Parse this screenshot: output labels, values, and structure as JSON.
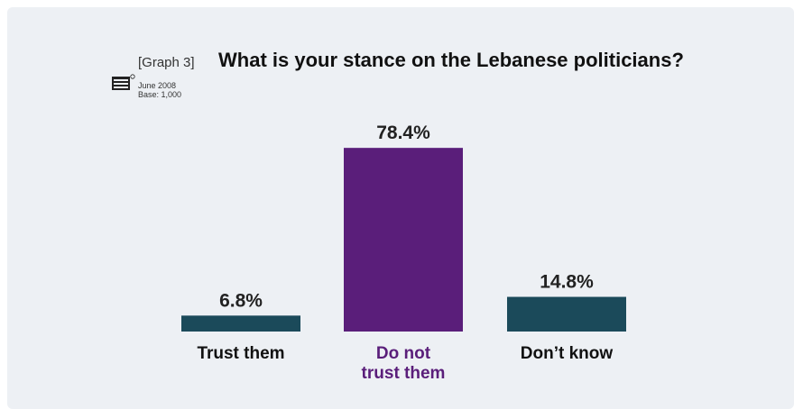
{
  "header": {
    "graph_tag": "[Graph 3]",
    "title": "What is your stance on the Lebanese politicians?",
    "date": "June 2008",
    "base": "Base: 1,000",
    "logo_text": "INFO"
  },
  "colors": {
    "teal": "#1b4a5a",
    "purple": "#5a1e7a",
    "label_default": "#111111",
    "background": "#edf0f4"
  },
  "chart_data": {
    "type": "bar",
    "title": "What is your stance on the Lebanese politicians?",
    "categories": [
      "Trust them",
      "Do not trust them",
      "Don’t know"
    ],
    "category_lines": [
      [
        "Trust them"
      ],
      [
        "Do not",
        "trust them"
      ],
      [
        "Don’t know"
      ]
    ],
    "values": [
      6.8,
      78.4,
      14.8
    ],
    "value_labels": [
      "6.8%",
      "78.4%",
      "14.8%"
    ],
    "bar_colors": [
      "#1b4a5a",
      "#5a1e7a",
      "#1b4a5a"
    ],
    "label_colors": [
      "#111111",
      "#5a1e7a",
      "#111111"
    ],
    "ylim": [
      0,
      100
    ],
    "grid": false,
    "legend": "none"
  }
}
